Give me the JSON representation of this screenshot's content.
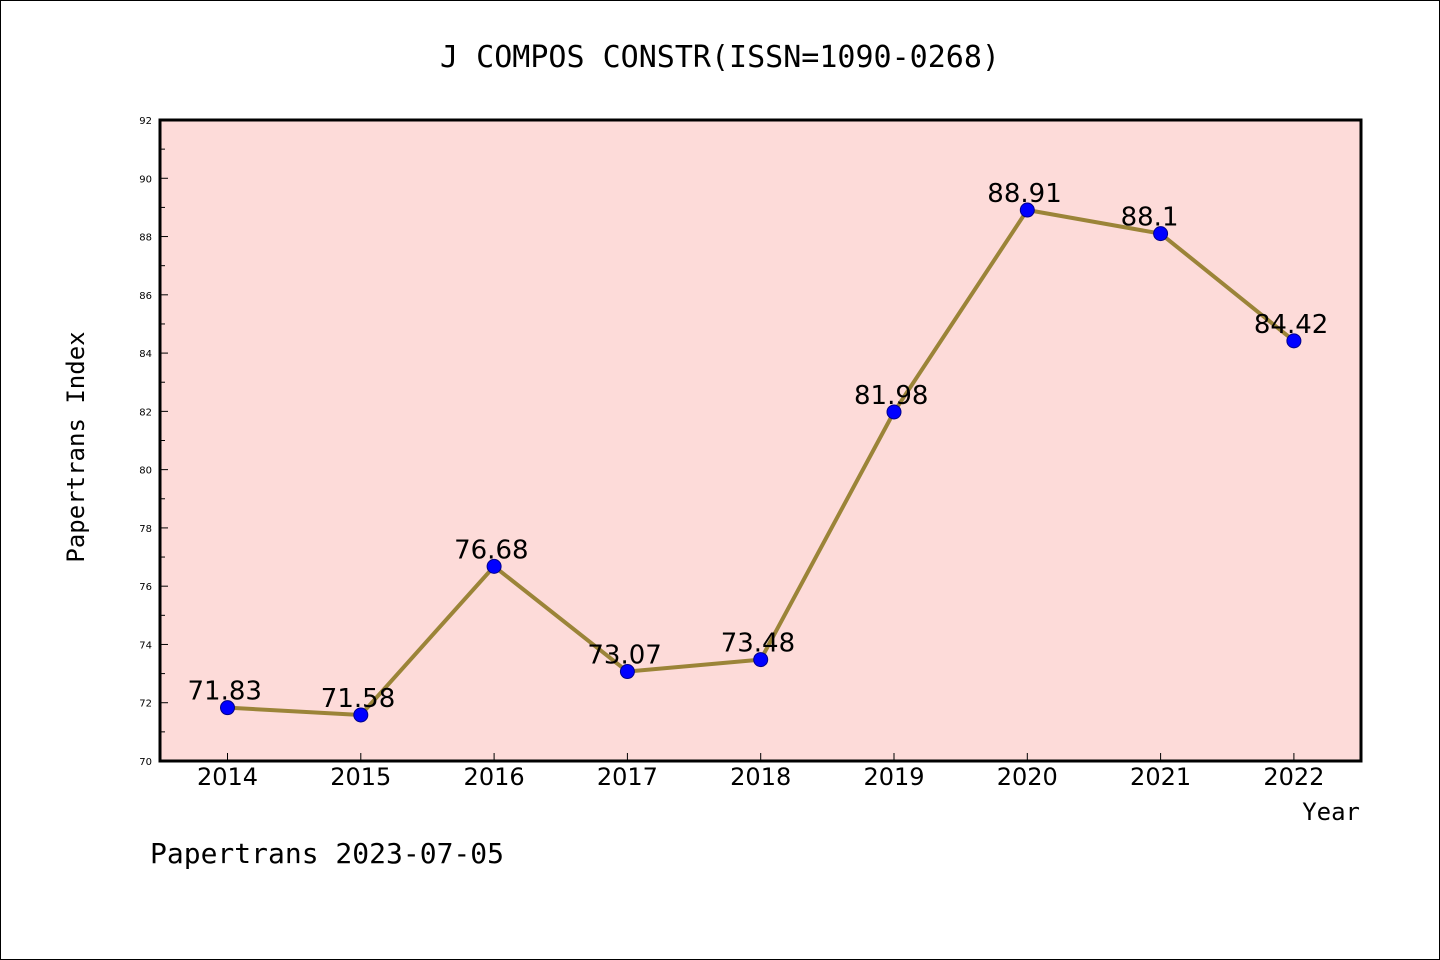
{
  "chart_data": {
    "type": "line",
    "title": "J COMPOS CONSTR(ISSN=1090-0268)",
    "xlabel": "Year",
    "ylabel": "Papertrans Index",
    "categories": [
      "2014",
      "2015",
      "2016",
      "2017",
      "2018",
      "2019",
      "2020",
      "2021",
      "2022"
    ],
    "series": [
      {
        "values": [
          71.83,
          71.58,
          76.68,
          73.07,
          73.48,
          81.98,
          88.91,
          88.1,
          84.42
        ]
      }
    ],
    "data_labels": [
      "71.83",
      "71.58",
      "76.68",
      "73.07",
      "73.48",
      "81.98",
      "88.91",
      "88.1",
      "84.42"
    ],
    "ylim": [
      70,
      92
    ],
    "yticks": [
      70,
      72,
      74,
      76,
      78,
      80,
      82,
      84,
      86,
      88,
      90,
      92
    ],
    "grid": false,
    "colors": {
      "plot_background": "#fddbd9",
      "line": "#9b8438",
      "marker": "#0000ff"
    }
  },
  "footer": "Papertrans 2023-07-05"
}
